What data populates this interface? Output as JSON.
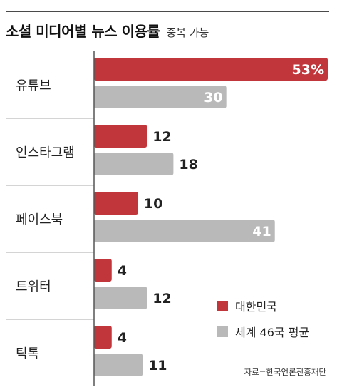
{
  "header": {
    "title": "소셜 미디어별 뉴스 이용률",
    "subtitle": "중복 가능"
  },
  "chart_data": {
    "type": "bar",
    "orientation": "horizontal",
    "title": "소셜 미디어별 뉴스 이용률",
    "subtitle": "중복 가능",
    "categories": [
      "유튜브",
      "인스타그램",
      "페이스북",
      "트위터",
      "틱톡"
    ],
    "series": [
      {
        "name": "대한민국",
        "values": [
          53,
          12,
          10,
          4,
          4
        ],
        "labels": [
          "53%",
          "12",
          "10",
          "4",
          "4"
        ],
        "color": "#c0363b"
      },
      {
        "name": "세계 46국 평균",
        "values": [
          30,
          18,
          41,
          12,
          11
        ],
        "labels": [
          "30",
          "18",
          "41",
          "12",
          "11"
        ],
        "color": "#b9b9b9"
      }
    ],
    "xlim": [
      0,
      53
    ],
    "legend_position": "bottom-right",
    "grid": false,
    "source": "자료=한국언론진흥재단"
  },
  "colors": {
    "korea": "#c0363b",
    "world": "#b9b9b9",
    "axis": "#555555",
    "separator": "#aaaaaa"
  }
}
